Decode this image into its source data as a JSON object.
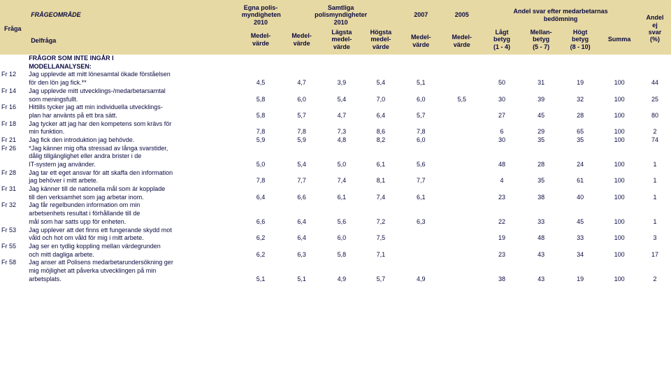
{
  "colors": {
    "header_bg": "#e7d9a3",
    "text": "#0a0a40",
    "page_bg": "#ffffff"
  },
  "header": {
    "fraga": "Fråga",
    "omrade": "FRÅGEOMRÅDE",
    "delfraga": "Delfråga",
    "egna_top1": "Egna polis-",
    "egna_top2": "myndigheten",
    "egna_top3": "2010",
    "samtliga_top1": "Samtliga",
    "samtliga_top2": "polismyndigheter",
    "samtliga_top3": "2010",
    "y2007": "2007",
    "y2005": "2005",
    "andel_top1": "Andel svar efter medarbetarnas",
    "andel_top2": "bedömning",
    "andel_ej1": "Andel",
    "andel_ej2": "ej",
    "andel_ej3": "svar",
    "andel_ej4": "(%)",
    "medelvarde": "Medel-",
    "medelvarde2": "värde",
    "lagsta": "Lägsta",
    "hogsta": "Högsta",
    "medel3": "medel-",
    "varde3": "värde",
    "lagt1": "Lågt",
    "lagt2": "betyg",
    "lagt3": "(1 - 4)",
    "mellan1": "Mellan-",
    "mellan2": "betyg",
    "mellan3": "(5 - 7)",
    "hogt1": "Högt",
    "hogt2": "betyg",
    "hogt3": "(8 - 10)",
    "summa": "Summa"
  },
  "section1": "FRÅGOR SOM INTE INGÅR I",
  "section2": "MODELLANALYSEN:",
  "rows": [
    {
      "id": "Fr 12",
      "lines": [
        "Jag upplevde att mitt lönesamtal ökade förståelsen",
        "för den lön jag fick.**"
      ],
      "vals": [
        "4,5",
        "4,7",
        "3,9",
        "5,4",
        "5,1",
        "",
        "50",
        "31",
        "19",
        "100",
        "44"
      ]
    },
    {
      "id": "Fr 14",
      "lines": [
        "Jag upplevde mitt utvecklings-/medarbetarsamtal",
        "som meningsfullt."
      ],
      "vals": [
        "5,8",
        "6,0",
        "5,4",
        "7,0",
        "6,0",
        "5,5",
        "30",
        "39",
        "32",
        "100",
        "25"
      ]
    },
    {
      "id": "Fr 16",
      "lines": [
        "Hittills tycker jag att min individuella utvecklings-",
        "plan har använts på ett bra sätt."
      ],
      "vals": [
        "5,8",
        "5,7",
        "4,7",
        "6,4",
        "5,7",
        "",
        "27",
        "45",
        "28",
        "100",
        "80"
      ]
    },
    {
      "id": "Fr 18",
      "lines": [
        "Jag tycker att jag har den kompetens som krävs för",
        "min funktion."
      ],
      "vals": [
        "7,8",
        "7,8",
        "7,3",
        "8,6",
        "7,8",
        "",
        "6",
        "29",
        "65",
        "100",
        "2"
      ]
    },
    {
      "id": "Fr 21",
      "lines": [
        "Jag fick den introduktion jag behövde."
      ],
      "vals": [
        "5,9",
        "5,9",
        "4,8",
        "8,2",
        "6,0",
        "",
        "30",
        "35",
        "35",
        "100",
        "74"
      ]
    },
    {
      "id": "Fr 26",
      "lines": [
        "*Jag känner mig ofta stressad av långa svarstider,",
        "dålig tillgänglighet eller andra brister i de",
        "IT-system jag använder."
      ],
      "vals": [
        "5,0",
        "5,4",
        "5,0",
        "6,1",
        "5,6",
        "",
        "48",
        "28",
        "24",
        "100",
        "1"
      ]
    },
    {
      "id": "Fr 28",
      "lines": [
        "Jag tar ett eget ansvar för att skaffa den information",
        "jag behöver i mitt arbete."
      ],
      "vals": [
        "7,8",
        "7,7",
        "7,4",
        "8,1",
        "7,7",
        "",
        "4",
        "35",
        "61",
        "100",
        "1"
      ]
    },
    {
      "id": "Fr 31",
      "lines": [
        "Jag känner till de nationella mål som är kopplade",
        "till den verksamhet som jag arbetar inom."
      ],
      "vals": [
        "6,4",
        "6,6",
        "6,1",
        "7,4",
        "6,1",
        "",
        "23",
        "38",
        "40",
        "100",
        "1"
      ]
    },
    {
      "id": "Fr 32",
      "lines": [
        "Jag får regelbunden information om min",
        "arbetsenhets resultat i förhållande till de",
        "mål som har satts upp för enheten."
      ],
      "vals": [
        "6,6",
        "6,4",
        "5,6",
        "7,2",
        "6,3",
        "",
        "22",
        "33",
        "45",
        "100",
        "1"
      ]
    },
    {
      "id": "Fr 53",
      "lines": [
        "Jag upplever att det finns ett fungerande skydd mot",
        "våld och hot om våld för mig i mitt arbete."
      ],
      "vals": [
        "6,2",
        "6,4",
        "6,0",
        "7,5",
        "",
        "",
        "19",
        "48",
        "33",
        "100",
        "3"
      ]
    },
    {
      "id": "Fr 55",
      "lines": [
        "Jag ser en tydlig koppling mellan värdegrunden",
        "och mitt dagliga arbete."
      ],
      "vals": [
        "6,2",
        "6,3",
        "5,8",
        "7,1",
        "",
        "",
        "23",
        "43",
        "34",
        "100",
        "17"
      ]
    },
    {
      "id": "Fr 58",
      "lines": [
        "Jag anser att Polisens medarbetarundersökning ger",
        "mig möjlighet att påverka utvecklingen på min",
        "arbetsplats."
      ],
      "vals": [
        "5,1",
        "5,1",
        "4,9",
        "5,7",
        "4,9",
        "",
        "38",
        "43",
        "19",
        "100",
        "2"
      ]
    }
  ]
}
